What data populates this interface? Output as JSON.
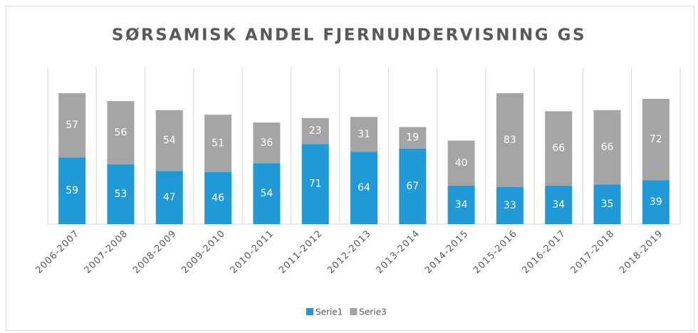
{
  "chart_data": {
    "type": "stacked_bar",
    "title": "SØRSAMISK ANDEL FJERNUNDERVISNING GS",
    "categories": [
      "2006-2007",
      "2007-2008",
      "2008-2009",
      "2009-2010",
      "2010-2011",
      "2011-2012",
      "2012-2013",
      "2013-2014",
      "2014-2015",
      "2015-2016",
      "2016-2017",
      "2017-2018",
      "2018-2019"
    ],
    "series": [
      {
        "name": "Serie1",
        "color": "#1f9ad6",
        "values": [
          59,
          53,
          47,
          46,
          54,
          71,
          64,
          67,
          34,
          33,
          34,
          35,
          39
        ]
      },
      {
        "name": "Serie3",
        "color": "#a5a5a5",
        "values": [
          57,
          56,
          54,
          51,
          36,
          23,
          31,
          19,
          40,
          83,
          66,
          66,
          72
        ]
      }
    ],
    "grid": true,
    "legend": "bottom"
  }
}
